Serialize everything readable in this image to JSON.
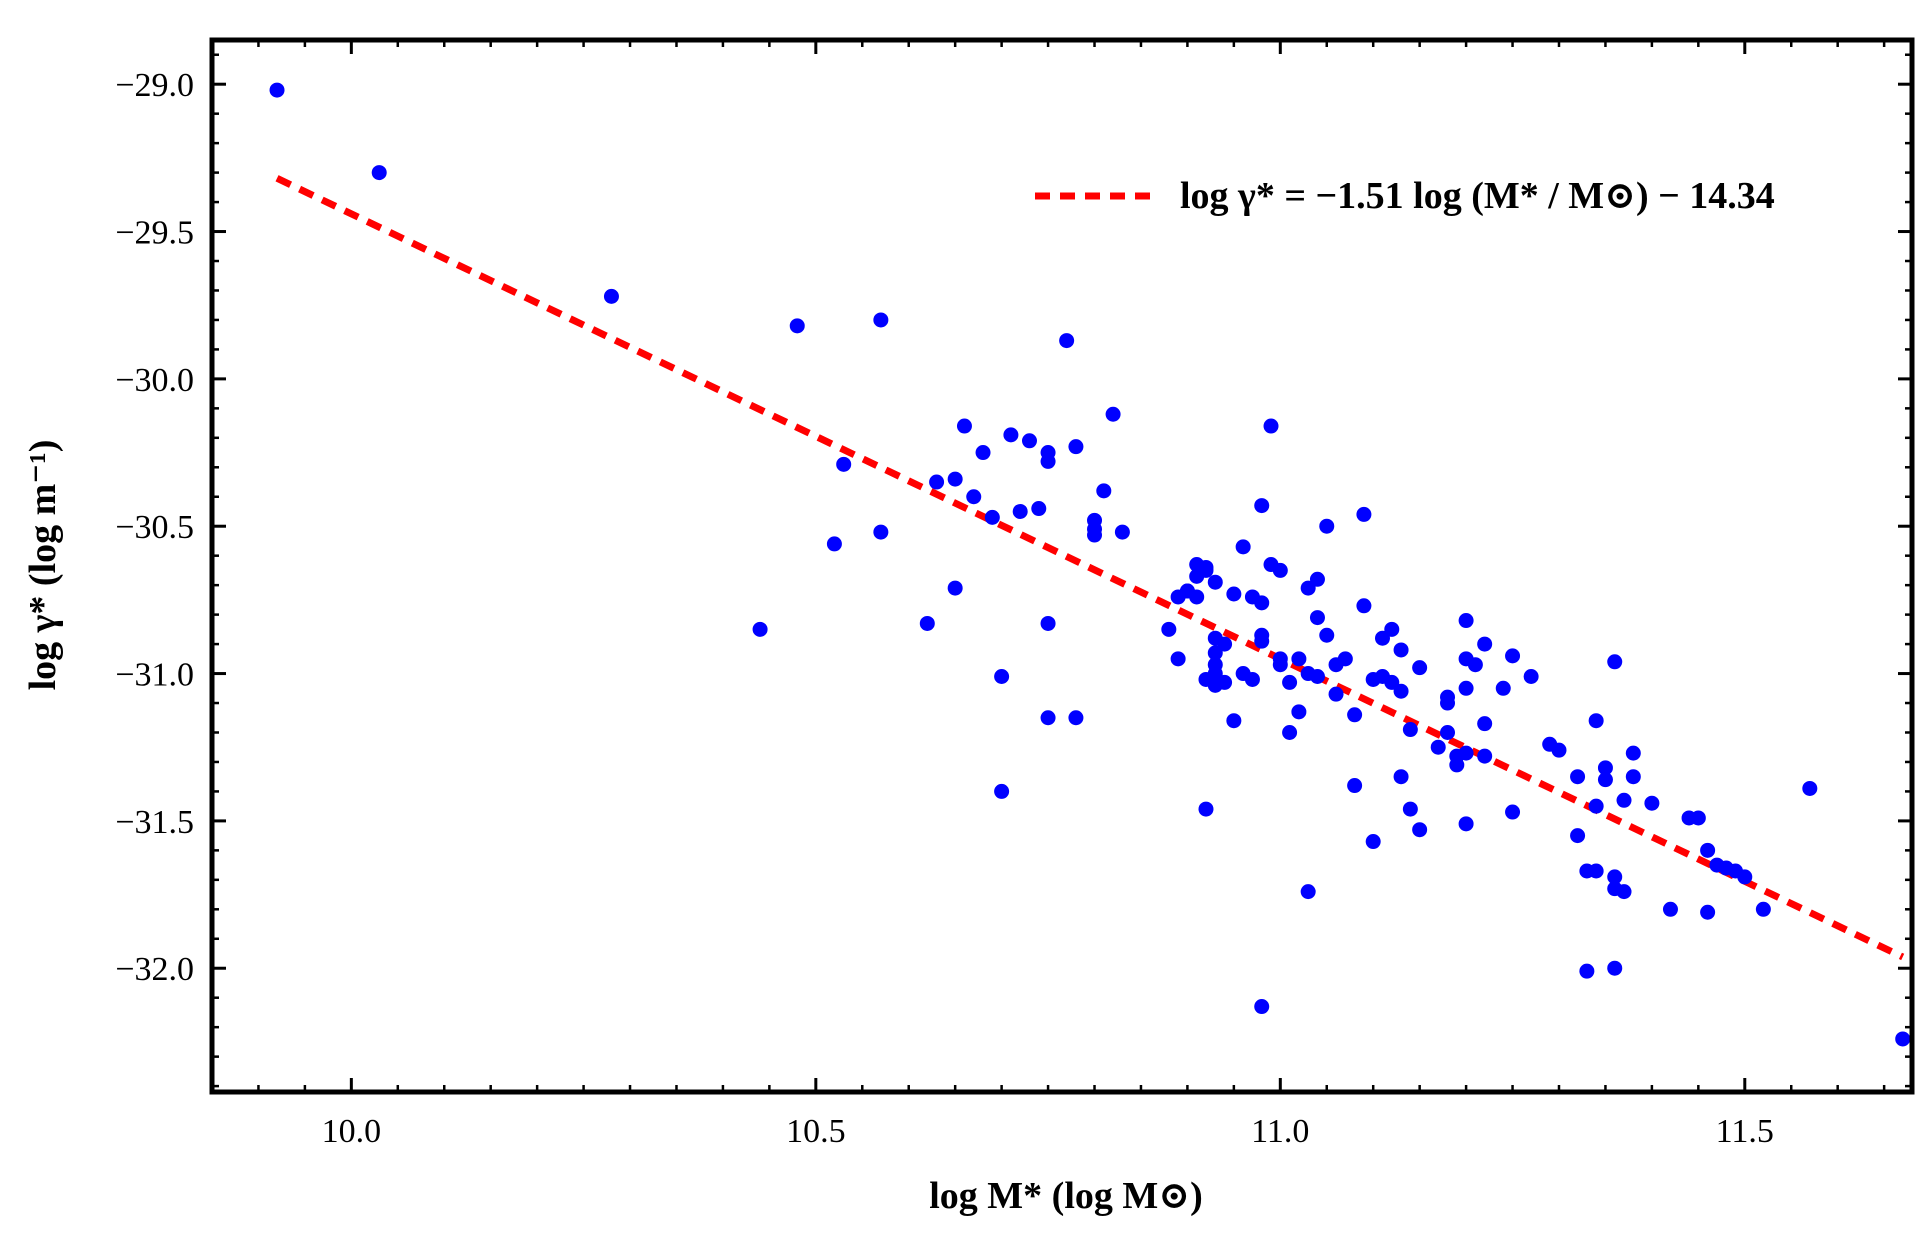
{
  "chart_data": {
    "type": "scatter",
    "xlabel": "log M* (log M⊙)",
    "ylabel": "log γ* (log m⁻¹)",
    "xlim": [
      9.85,
      11.68
    ],
    "ylim": [
      -32.42,
      -28.85
    ],
    "x_ticks": [
      10.0,
      10.5,
      11.0,
      11.5
    ],
    "x_tick_labels": [
      "10.0",
      "10.5",
      "11.0",
      "11.5"
    ],
    "y_ticks": [
      -29.0,
      -29.5,
      -30.0,
      -30.5,
      -31.0,
      -31.5,
      -32.0
    ],
    "y_tick_labels": [
      "−29.0",
      "−29.5",
      "−30.0",
      "−30.5",
      "−31.0",
      "−31.5",
      "−32.0"
    ],
    "point_color": "#0000ff",
    "fit_color": "#ff0000",
    "legend": {
      "label": "log γ* = −1.51 log (M* / M⊙) − 14.34",
      "position": "top-right"
    },
    "fit": {
      "slope": -1.51,
      "intercept": -14.34,
      "x_range": [
        9.92,
        11.67
      ]
    },
    "points": [
      [
        9.92,
        -29.02
      ],
      [
        10.03,
        -29.3
      ],
      [
        10.28,
        -29.72
      ],
      [
        10.44,
        -30.85
      ],
      [
        10.48,
        -29.82
      ],
      [
        10.52,
        -30.56
      ],
      [
        10.53,
        -30.29
      ],
      [
        10.57,
        -29.8
      ],
      [
        10.57,
        -30.52
      ],
      [
        10.62,
        -30.83
      ],
      [
        10.63,
        -30.35
      ],
      [
        10.65,
        -30.71
      ],
      [
        10.65,
        -30.34
      ],
      [
        10.66,
        -30.16
      ],
      [
        10.67,
        -30.4
      ],
      [
        10.68,
        -30.25
      ],
      [
        10.69,
        -30.47
      ],
      [
        10.7,
        -31.4
      ],
      [
        10.7,
        -31.01
      ],
      [
        10.71,
        -30.19
      ],
      [
        10.72,
        -30.45
      ],
      [
        10.73,
        -30.21
      ],
      [
        10.74,
        -30.44
      ],
      [
        10.75,
        -30.25
      ],
      [
        10.75,
        -30.28
      ],
      [
        10.75,
        -30.83
      ],
      [
        10.75,
        -31.15
      ],
      [
        10.77,
        -29.87
      ],
      [
        10.78,
        -31.15
      ],
      [
        10.78,
        -30.23
      ],
      [
        10.8,
        -30.48
      ],
      [
        10.8,
        -30.51
      ],
      [
        10.8,
        -30.53
      ],
      [
        10.81,
        -30.38
      ],
      [
        10.82,
        -30.12
      ],
      [
        10.83,
        -30.52
      ],
      [
        10.88,
        -30.85
      ],
      [
        10.89,
        -30.74
      ],
      [
        10.89,
        -30.95
      ],
      [
        10.9,
        -30.72
      ],
      [
        10.9,
        -30.72
      ],
      [
        10.91,
        -30.74
      ],
      [
        10.91,
        -30.67
      ],
      [
        10.91,
        -30.63
      ],
      [
        10.92,
        -30.65
      ],
      [
        10.92,
        -31.02
      ],
      [
        10.92,
        -31.46
      ],
      [
        10.92,
        -30.64
      ],
      [
        10.93,
        -30.69
      ],
      [
        10.93,
        -30.88
      ],
      [
        10.93,
        -30.93
      ],
      [
        10.93,
        -30.97
      ],
      [
        10.93,
        -31.0
      ],
      [
        10.93,
        -31.04
      ],
      [
        10.94,
        -31.03
      ],
      [
        10.94,
        -30.9
      ],
      [
        10.95,
        -30.73
      ],
      [
        10.95,
        -31.16
      ],
      [
        10.96,
        -30.57
      ],
      [
        10.96,
        -31.0
      ],
      [
        10.97,
        -30.74
      ],
      [
        10.97,
        -31.02
      ],
      [
        10.98,
        -30.76
      ],
      [
        10.98,
        -30.87
      ],
      [
        10.98,
        -30.89
      ],
      [
        10.98,
        -32.13
      ],
      [
        10.98,
        -30.43
      ],
      [
        10.99,
        -30.63
      ],
      [
        10.99,
        -30.16
      ],
      [
        11.0,
        -30.65
      ],
      [
        11.0,
        -30.97
      ],
      [
        11.0,
        -30.95
      ],
      [
        11.01,
        -31.03
      ],
      [
        11.01,
        -31.2
      ],
      [
        11.02,
        -31.13
      ],
      [
        11.02,
        -30.95
      ],
      [
        11.03,
        -30.71
      ],
      [
        11.03,
        -31.74
      ],
      [
        11.03,
        -31.0
      ],
      [
        11.04,
        -30.81
      ],
      [
        11.04,
        -30.68
      ],
      [
        11.04,
        -31.01
      ],
      [
        11.05,
        -30.5
      ],
      [
        11.05,
        -30.87
      ],
      [
        11.06,
        -31.07
      ],
      [
        11.06,
        -30.97
      ],
      [
        11.07,
        -30.95
      ],
      [
        11.08,
        -31.14
      ],
      [
        11.08,
        -31.38
      ],
      [
        11.09,
        -30.77
      ],
      [
        11.09,
        -30.46
      ],
      [
        11.1,
        -31.02
      ],
      [
        11.1,
        -31.57
      ],
      [
        11.11,
        -30.88
      ],
      [
        11.11,
        -31.01
      ],
      [
        11.12,
        -31.03
      ],
      [
        11.12,
        -30.85
      ],
      [
        11.13,
        -31.35
      ],
      [
        11.13,
        -30.92
      ],
      [
        11.13,
        -31.06
      ],
      [
        11.14,
        -31.46
      ],
      [
        11.14,
        -31.19
      ],
      [
        11.15,
        -30.98
      ],
      [
        11.15,
        -31.53
      ],
      [
        11.17,
        -31.25
      ],
      [
        11.18,
        -31.1
      ],
      [
        11.18,
        -31.08
      ],
      [
        11.18,
        -31.2
      ],
      [
        11.19,
        -31.31
      ],
      [
        11.19,
        -31.28
      ],
      [
        11.2,
        -31.05
      ],
      [
        11.2,
        -31.51
      ],
      [
        11.2,
        -31.27
      ],
      [
        11.2,
        -30.95
      ],
      [
        11.2,
        -30.82
      ],
      [
        11.21,
        -30.97
      ],
      [
        11.22,
        -31.17
      ],
      [
        11.22,
        -30.9
      ],
      [
        11.22,
        -31.28
      ],
      [
        11.24,
        -31.05
      ],
      [
        11.25,
        -30.94
      ],
      [
        11.25,
        -31.47
      ],
      [
        11.27,
        -31.01
      ],
      [
        11.29,
        -31.24
      ],
      [
        11.3,
        -31.26
      ],
      [
        11.32,
        -31.35
      ],
      [
        11.32,
        -31.55
      ],
      [
        11.33,
        -31.67
      ],
      [
        11.33,
        -32.01
      ],
      [
        11.34,
        -31.16
      ],
      [
        11.34,
        -31.45
      ],
      [
        11.34,
        -31.67
      ],
      [
        11.35,
        -31.36
      ],
      [
        11.35,
        -31.32
      ],
      [
        11.36,
        -31.69
      ],
      [
        11.36,
        -30.96
      ],
      [
        11.36,
        -32.0
      ],
      [
        11.36,
        -31.73
      ],
      [
        11.37,
        -31.74
      ],
      [
        11.37,
        -31.43
      ],
      [
        11.38,
        -31.35
      ],
      [
        11.38,
        -31.27
      ],
      [
        11.4,
        -31.44
      ],
      [
        11.42,
        -31.8
      ],
      [
        11.44,
        -31.49
      ],
      [
        11.45,
        -31.49
      ],
      [
        11.46,
        -31.6
      ],
      [
        11.46,
        -31.81
      ],
      [
        11.47,
        -31.65
      ],
      [
        11.48,
        -31.66
      ],
      [
        11.49,
        -31.67
      ],
      [
        11.5,
        -31.69
      ],
      [
        11.52,
        -31.8
      ],
      [
        11.57,
        -31.39
      ],
      [
        11.67,
        -32.24
      ]
    ]
  }
}
